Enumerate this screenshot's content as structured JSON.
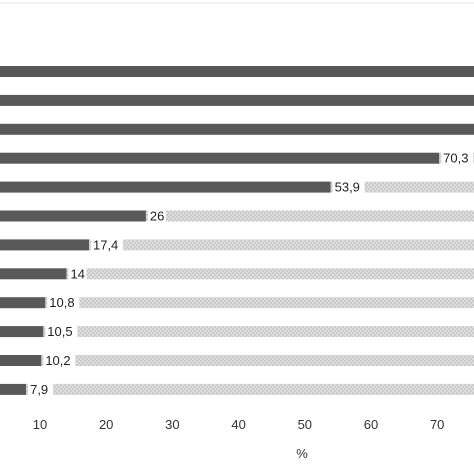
{
  "chart_data": {
    "type": "bar",
    "orientation": "horizontal",
    "stacked": true,
    "xlabel": "%",
    "xticks": [
      10,
      20,
      30,
      40,
      50,
      60,
      70
    ],
    "series": [
      {
        "values": [
          100,
          100,
          100,
          70.3,
          53.9,
          26,
          17.4,
          14,
          10.8,
          10.5,
          10.2,
          7.9
        ]
      },
      {
        "values": [
          0,
          0,
          0,
          29.7,
          46.1,
          74,
          82.6,
          86,
          89.2,
          89.5,
          89.8,
          92.1
        ]
      }
    ],
    "data_labels": [
      "",
      "",
      "",
      "70,3",
      "53,9",
      "26",
      "17,4",
      "14",
      "10,8",
      "10,5",
      "10,2",
      "7,9"
    ],
    "colors": {
      "primary": "#595959",
      "secondary": "#d9d9d9",
      "secondary_dots": "#bdbdbd"
    }
  }
}
